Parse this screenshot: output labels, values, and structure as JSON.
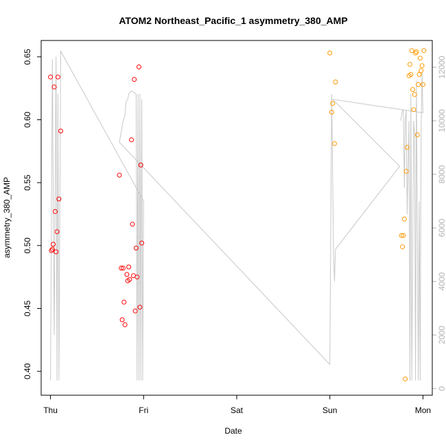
{
  "chart_data": {
    "type": "scatter",
    "title": "ATOM2 Northeast_Pacific_1 asymmetry_380_AMP",
    "xlabel": "Date",
    "ylabel": "asymmetry_380_AMP",
    "x_ticks": [
      "Thu",
      "Fri",
      "Sat",
      "Sun",
      "Mon"
    ],
    "x_domain_days": [
      -0.1,
      4.1
    ],
    "ylim": [
      0.381,
      0.663
    ],
    "y_ticks": [
      0.4,
      0.45,
      0.5,
      0.55,
      0.6,
      0.65
    ],
    "y2lim": [
      -250,
      13000
    ],
    "y2_ticks": [
      0,
      2000,
      4000,
      6000,
      8000,
      10000,
      12000
    ],
    "grid": false,
    "legend": "none",
    "colors": {
      "red": "#ff0000",
      "orange": "#ff9900",
      "line": "#c8c8c8"
    },
    "series": [
      {
        "color": "red",
        "points": [
          [
            0.0,
            0.634
          ],
          [
            0.01,
            0.496
          ],
          [
            0.02,
            0.497
          ],
          [
            0.03,
            0.501
          ],
          [
            0.04,
            0.626
          ],
          [
            0.05,
            0.527
          ],
          [
            0.06,
            0.495
          ],
          [
            0.07,
            0.511
          ],
          [
            0.08,
            0.634
          ],
          [
            0.09,
            0.537
          ],
          [
            0.11,
            0.591
          ],
          [
            0.74,
            0.556
          ],
          [
            0.76,
            0.482
          ],
          [
            0.77,
            0.441
          ],
          [
            0.78,
            0.482
          ],
          [
            0.79,
            0.455
          ],
          [
            0.8,
            0.437
          ],
          [
            0.82,
            0.477
          ],
          [
            0.83,
            0.472
          ],
          [
            0.84,
            0.483
          ],
          [
            0.85,
            0.473
          ],
          [
            0.87,
            0.584
          ],
          [
            0.88,
            0.517
          ],
          [
            0.89,
            0.476
          ],
          [
            0.9,
            0.632
          ],
          [
            0.91,
            0.448
          ],
          [
            0.92,
            0.498
          ],
          [
            0.93,
            0.475
          ],
          [
            0.95,
            0.642
          ],
          [
            0.96,
            0.451
          ],
          [
            0.97,
            0.564
          ],
          [
            0.98,
            0.502
          ]
        ]
      },
      {
        "color": "orange",
        "points": [
          [
            3.0,
            0.653
          ],
          [
            3.02,
            0.606
          ],
          [
            3.03,
            0.613
          ],
          [
            3.05,
            0.581
          ],
          [
            3.06,
            0.63
          ],
          [
            3.77,
            0.508
          ],
          [
            3.78,
            0.499
          ],
          [
            3.79,
            0.508
          ],
          [
            3.8,
            0.521
          ],
          [
            3.81,
            0.394
          ],
          [
            3.82,
            0.559
          ],
          [
            3.83,
            0.578
          ],
          [
            3.85,
            0.635
          ],
          [
            3.86,
            0.644
          ],
          [
            3.87,
            0.636
          ],
          [
            3.88,
            0.655
          ],
          [
            3.89,
            0.624
          ],
          [
            3.9,
            0.608
          ],
          [
            3.91,
            0.62
          ],
          [
            3.92,
            0.653
          ],
          [
            3.93,
            0.654
          ],
          [
            3.94,
            0.588
          ],
          [
            3.95,
            0.628
          ],
          [
            3.96,
            0.636
          ],
          [
            3.97,
            0.649
          ],
          [
            3.98,
            0.639
          ],
          [
            3.99,
            0.643
          ],
          [
            4.0,
            0.628
          ],
          [
            4.01,
            0.655
          ]
        ]
      }
    ],
    "line_series": [
      {
        "axis": "right",
        "color": "line",
        "points": [
          [
            0.0,
            300
          ],
          [
            0.02,
            12300
          ],
          [
            0.04,
            2000
          ],
          [
            0.06,
            12400
          ],
          [
            0.07,
            300
          ],
          [
            0.08,
            11000
          ],
          [
            0.09,
            300
          ],
          [
            0.11,
            12600
          ],
          [
            1.0,
            7000
          ],
          [
            0.99,
            300
          ],
          [
            0.98,
            10800
          ],
          [
            0.97,
            300
          ],
          [
            0.96,
            11000
          ],
          [
            0.95,
            300
          ],
          [
            0.94,
            11000
          ],
          [
            0.93,
            300
          ],
          [
            0.92,
            11000
          ],
          [
            0.88,
            11100
          ],
          [
            0.86,
            11100
          ],
          [
            0.84,
            11000
          ],
          [
            0.83,
            10800
          ],
          [
            0.81,
            10700
          ],
          [
            0.8,
            10200
          ],
          [
            0.78,
            10000
          ],
          [
            0.75,
            9400
          ],
          [
            0.74,
            9200
          ],
          [
            3.0,
            900
          ],
          [
            3.02,
            11000
          ],
          [
            3.04,
            5000
          ],
          [
            3.05,
            4000
          ],
          [
            3.06,
            5200
          ],
          [
            3.75,
            8300
          ],
          [
            3.03,
            10800
          ],
          [
            4.0,
            10300
          ],
          [
            3.99,
            11800
          ],
          [
            3.98,
            9600
          ],
          [
            3.97,
            300
          ],
          [
            3.96,
            7000
          ],
          [
            3.95,
            300
          ],
          [
            3.93,
            11500
          ],
          [
            3.92,
            300
          ],
          [
            3.91,
            9500
          ],
          [
            3.9,
            10000
          ],
          [
            3.88,
            300
          ],
          [
            3.87,
            11000
          ],
          [
            3.86,
            300
          ],
          [
            3.85,
            10000
          ],
          [
            3.83,
            6500
          ],
          [
            3.82,
            10400
          ],
          [
            3.81,
            10000
          ],
          [
            3.8,
            7500
          ],
          [
            3.79,
            10400
          ],
          [
            3.78,
            10400
          ],
          [
            3.76,
            10000
          ]
        ]
      }
    ]
  }
}
